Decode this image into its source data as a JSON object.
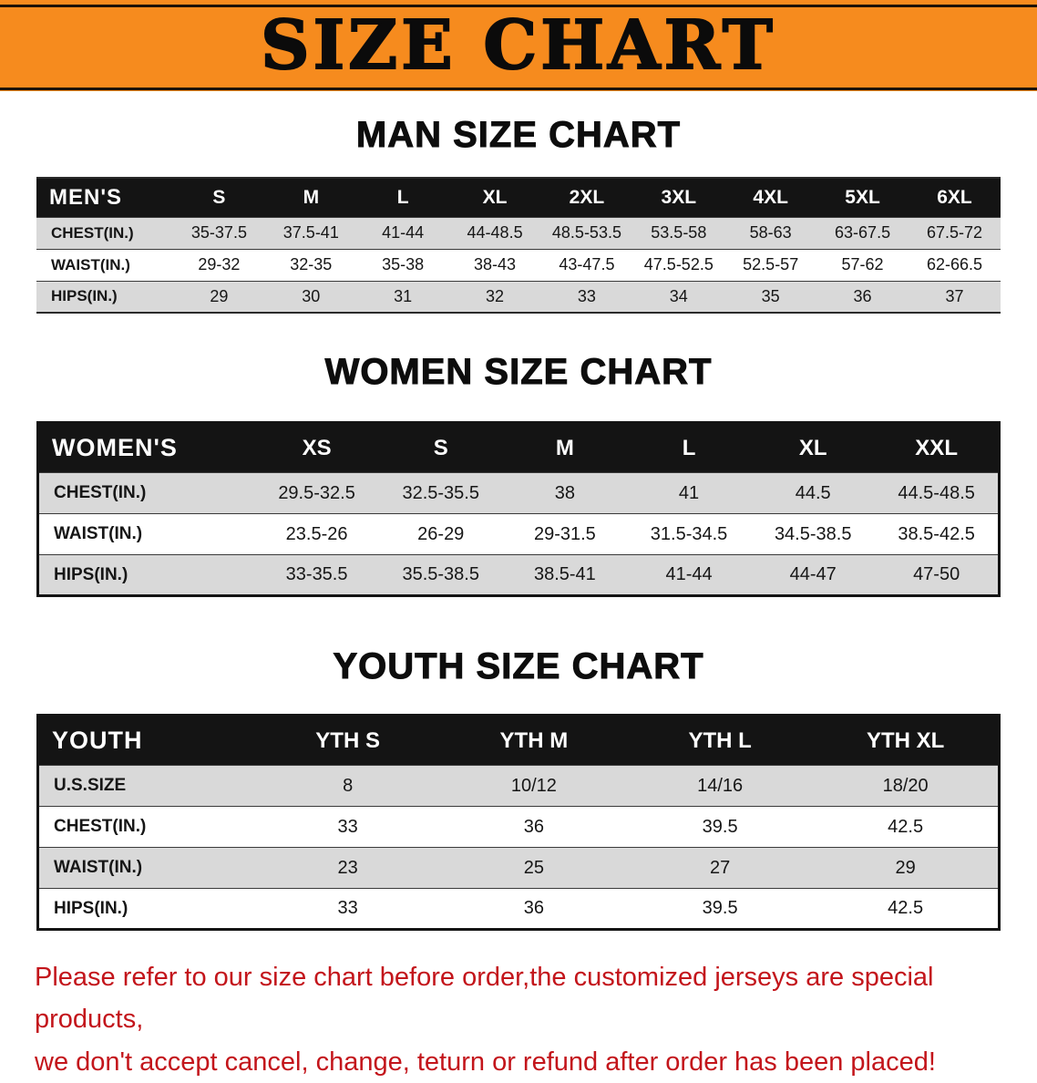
{
  "banner": {
    "title": "SIZE CHART"
  },
  "colors": {
    "banner_bg": "#f68b1e",
    "table_header_bg": "#141414",
    "row_gray": "#d9d9d9",
    "disclaimer_red": "#c3151b",
    "text": "#0d0d0d"
  },
  "sections": [
    {
      "id": "men",
      "heading": "MAN SIZE CHART",
      "header": [
        "MEN'S",
        "S",
        "M",
        "L",
        "XL",
        "2XL",
        "3XL",
        "4XL",
        "5XL",
        "6XL"
      ],
      "rows": [
        [
          "CHEST(IN.)",
          "35-37.5",
          "37.5-41",
          "41-44",
          "44-48.5",
          "48.5-53.5",
          "53.5-58",
          "58-63",
          "63-67.5",
          "67.5-72"
        ],
        [
          "WAIST(IN.)",
          "29-32",
          "32-35",
          "35-38",
          "38-43",
          "43-47.5",
          "47.5-52.5",
          "52.5-57",
          "57-62",
          "62-66.5"
        ],
        [
          "HIPS(IN.)",
          "29",
          "30",
          "31",
          "32",
          "33",
          "34",
          "35",
          "36",
          "37"
        ]
      ]
    },
    {
      "id": "women",
      "heading": "WOMEN SIZE CHART",
      "header": [
        "WOMEN'S",
        "XS",
        "S",
        "M",
        "L",
        "XL",
        "XXL"
      ],
      "rows": [
        [
          "CHEST(IN.)",
          "29.5-32.5",
          "32.5-35.5",
          "38",
          "41",
          "44.5",
          "44.5-48.5"
        ],
        [
          "WAIST(IN.)",
          "23.5-26",
          "26-29",
          "29-31.5",
          "31.5-34.5",
          "34.5-38.5",
          "38.5-42.5"
        ],
        [
          "HIPS(IN.)",
          "33-35.5",
          "35.5-38.5",
          "38.5-41",
          "41-44",
          "44-47",
          "47-50"
        ]
      ]
    },
    {
      "id": "youth",
      "heading": "YOUTH SIZE CHART",
      "header": [
        "YOUTH",
        "YTH S",
        "YTH M",
        "YTH L",
        "YTH XL"
      ],
      "rows": [
        [
          "U.S.SIZE",
          "8",
          "10/12",
          "14/16",
          "18/20"
        ],
        [
          "CHEST(IN.)",
          "33",
          "36",
          "39.5",
          "42.5"
        ],
        [
          "WAIST(IN.)",
          "23",
          "25",
          "27",
          "29"
        ],
        [
          "HIPS(IN.)",
          "33",
          "36",
          "39.5",
          "42.5"
        ]
      ]
    }
  ],
  "disclaimer": {
    "line1": "Please refer to our size chart before order,the customized jerseys are special products,",
    "line2": "we don't accept cancel, change, teturn or refund after order has been placed!"
  }
}
